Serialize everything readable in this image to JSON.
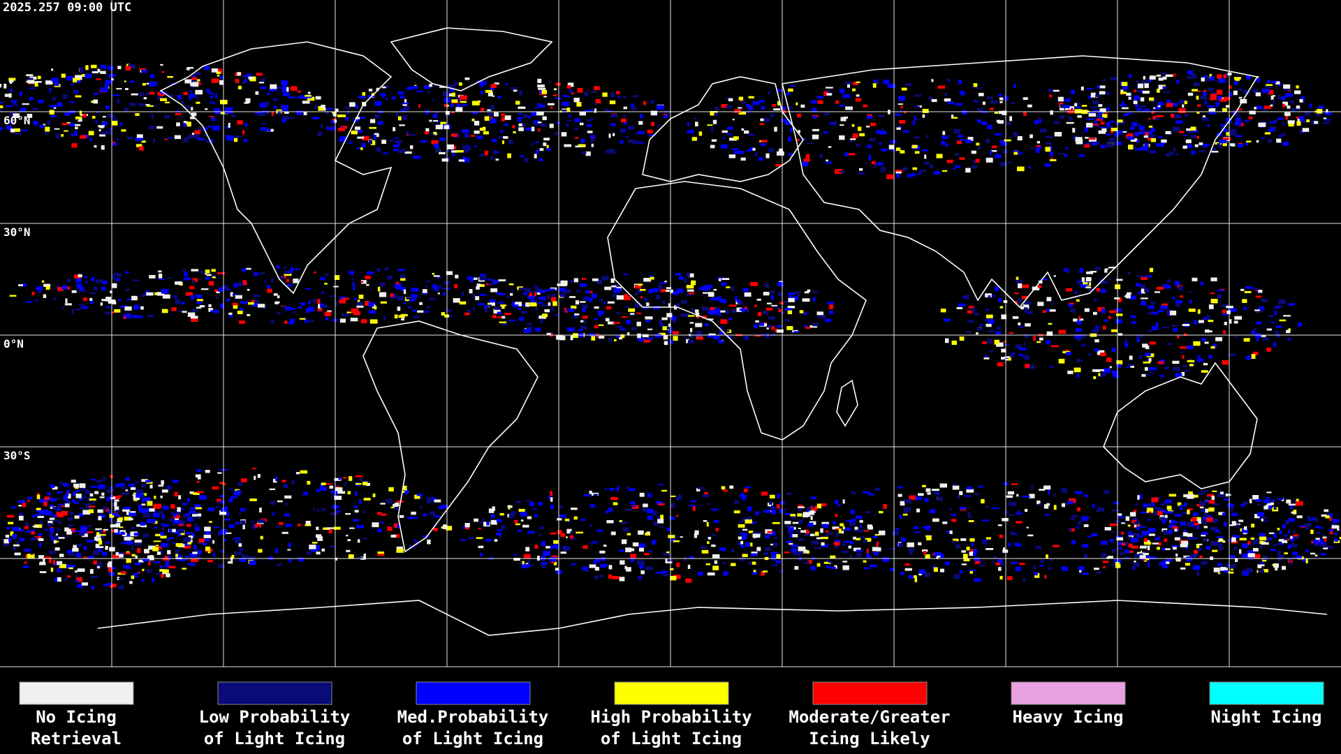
{
  "header": {
    "timestamp": "2025.257 09:00 UTC"
  },
  "map": {
    "latitude_labels": [
      "60°N",
      "30°N",
      "0°N",
      "30°S"
    ]
  },
  "legend": {
    "items": [
      {
        "color": "#f0f0f0",
        "label": [
          "No Icing",
          "Retrieval"
        ]
      },
      {
        "color": "#0a0a78",
        "label": [
          "Low Probability",
          "of Light Icing"
        ]
      },
      {
        "color": "#0000ff",
        "label": [
          "Med.Probability",
          "of Light Icing"
        ]
      },
      {
        "color": "#ffff00",
        "label": [
          "High Probability",
          "of Light Icing"
        ]
      },
      {
        "color": "#ff0000",
        "label": [
          "Moderate/Greater",
          "Icing Likely"
        ]
      },
      {
        "color": "#e8a0e0",
        "label": [
          "Heavy Icing"
        ]
      },
      {
        "color": "#00ffff",
        "label": [
          "Night Icing"
        ]
      }
    ]
  }
}
